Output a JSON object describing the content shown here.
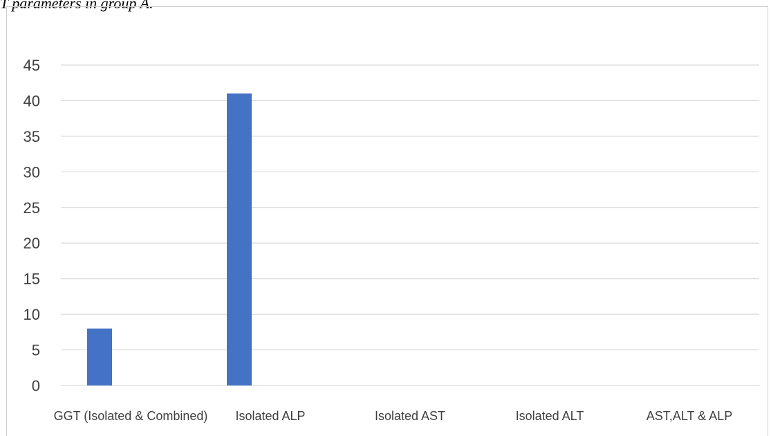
{
  "caption": "T parameters in group A.",
  "chart_data": {
    "type": "bar",
    "categories": [
      "GGT (Isolated & Combined)",
      "Isolated ALP",
      "Isolated AST",
      "Isolated ALT",
      "AST,ALT & ALP"
    ],
    "values": [
      8,
      41,
      0,
      0,
      0
    ],
    "ylim": [
      0,
      45
    ],
    "yticks": [
      0,
      5,
      10,
      15,
      20,
      25,
      30,
      35,
      40,
      45
    ],
    "grid": true,
    "bar_color": "#4472C4",
    "grid_color": "#d9d9d9"
  }
}
